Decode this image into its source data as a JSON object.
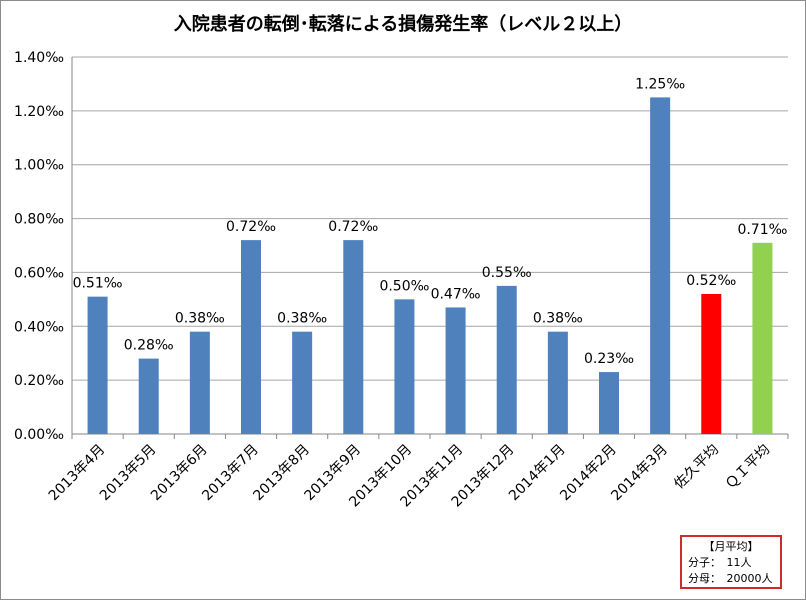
{
  "chart_data": {
    "type": "bar",
    "title": "入院患者の転倒･転落による損傷発生率（レベル２以上）",
    "xlabel": "",
    "ylabel": "",
    "ylim": [
      0,
      1.4
    ],
    "yticks": [
      "0.00‰",
      "0.20‰",
      "0.40‰",
      "0.60‰",
      "0.80‰",
      "1.00‰",
      "1.20‰",
      "1.40‰"
    ],
    "grid": true,
    "categories": [
      "2013年4月",
      "2013年5月",
      "2013年6月",
      "2013年7月",
      "2013年8月",
      "2013年9月",
      "2013年10月",
      "2013年11月",
      "2013年12月",
      "2014年1月",
      "2014年2月",
      "2014年3月",
      "佐久平均",
      "ＱＩ平均"
    ],
    "values": [
      0.51,
      0.28,
      0.38,
      0.72,
      0.38,
      0.72,
      0.5,
      0.47,
      0.55,
      0.38,
      0.23,
      1.25,
      0.52,
      0.71
    ],
    "value_labels": [
      "0.51‰",
      "0.28‰",
      "0.38‰",
      "0.72‰",
      "0.38‰",
      "0.72‰",
      "0.50‰",
      "0.47‰",
      "0.55‰",
      "0.38‰",
      "0.23‰",
      "1.25‰",
      "0.52‰",
      "0.71‰"
    ],
    "bar_colors": [
      "#4f81bd",
      "#4f81bd",
      "#4f81bd",
      "#4f81bd",
      "#4f81bd",
      "#4f81bd",
      "#4f81bd",
      "#4f81bd",
      "#4f81bd",
      "#4f81bd",
      "#4f81bd",
      "#4f81bd",
      "#ff0000",
      "#92d050"
    ]
  },
  "note_box": {
    "title": "【月平均】",
    "numerator": "分子：　11人",
    "denominator": "分母：　20000人"
  }
}
